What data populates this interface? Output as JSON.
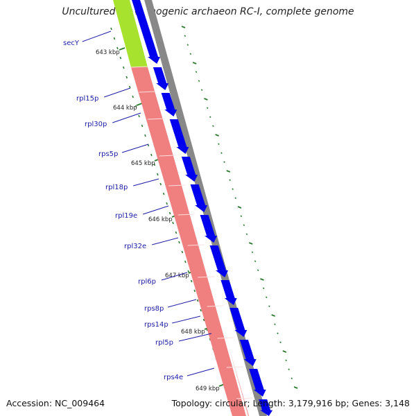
{
  "title": "Uncultured methanogenic archaeon RC-I, complete genome",
  "footer": {
    "accession": "Accession: NC_009464",
    "topology": "Topology: circular; Length: 3,179,916 bp; Genes: 3,148"
  },
  "colors": {
    "gene_arrow": "#0000ee",
    "feature_salmon": "#f08080",
    "feature_green": "#a6e22e",
    "backbone": "#888888",
    "tick": "#2e7d32",
    "label": "#1a1aa6"
  },
  "genes": [
    "secY",
    "rpl15p",
    "rpl30p",
    "rps5p",
    "rpl18p",
    "rpl19e",
    "rpl32e",
    "rpl6p",
    "rps8p",
    "rps14p",
    "rpl5p",
    "rps4e"
  ],
  "kbp_ticks": [
    "643 kbp",
    "644 kbp",
    "645 kbp",
    "646 kbp",
    "647 kbp",
    "648 kbp",
    "649 kbp"
  ]
}
